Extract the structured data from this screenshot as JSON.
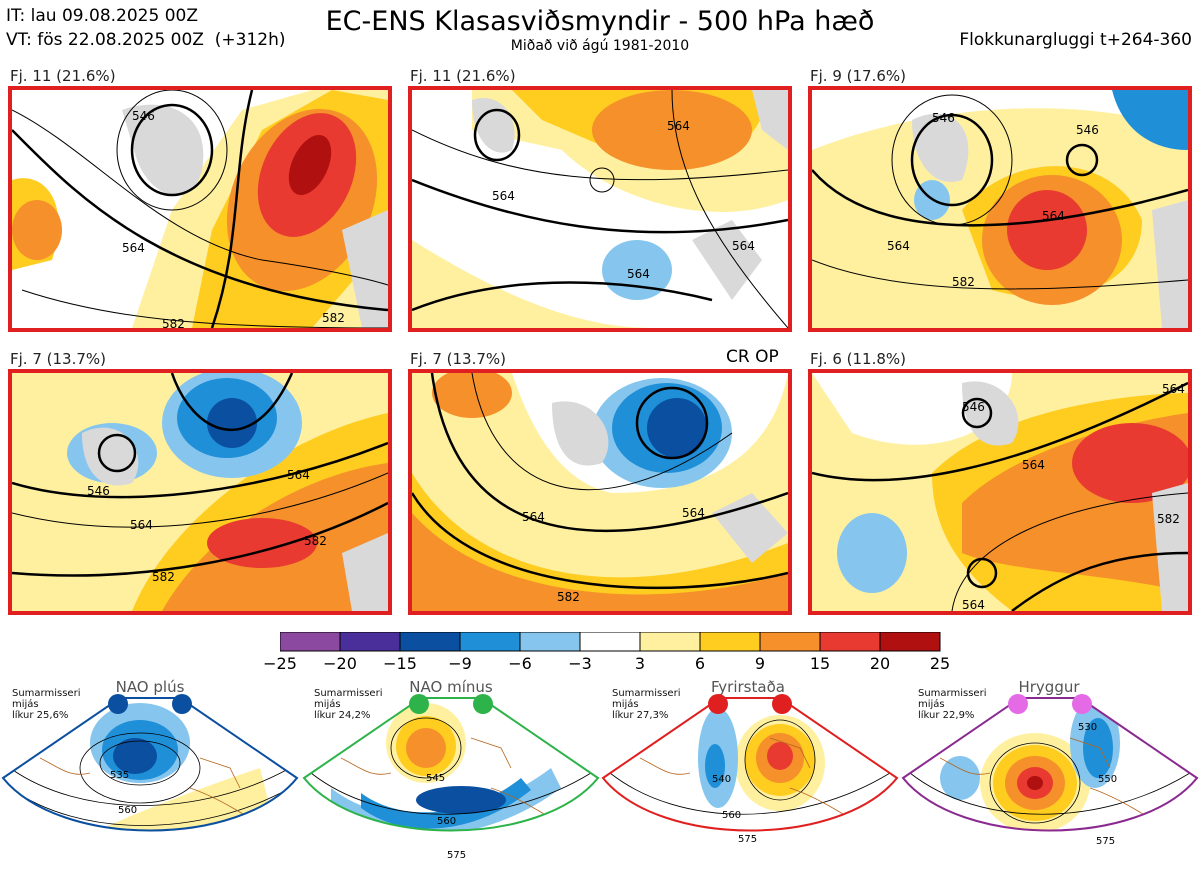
{
  "header": {
    "init_time": "IT: lau 09.08.2025 00Z",
    "valid_time": "VT: fös 22.08.2025 00Z  (+312h)",
    "title": "EC-ENS Klasasviðsmyndir - 500 hPa hæð",
    "subtitle": "Miðað við ágú 1981-2010",
    "window": "Flokkunargluggi t+264-360"
  },
  "chart_data": {
    "type": "heatmap",
    "title": "EC-ENS Klasasviðsmyndir - 500 hPa hæð",
    "panels": [
      {
        "label": "Fj. 11 (21.6%)",
        "contours": [
          "546",
          "564",
          "582",
          "582"
        ]
      },
      {
        "label": "Fj. 11 (21.6%)",
        "contours": [
          "564",
          "564",
          "564",
          "564"
        ]
      },
      {
        "label": "Fj. 9 (17.6%)",
        "contours": [
          "546",
          "546",
          "564",
          "564",
          "582"
        ]
      },
      {
        "label": "Fj. 7 (13.7%)",
        "contours": [
          "546",
          "564",
          "564",
          "582",
          "582"
        ]
      },
      {
        "label": "Fj. 7 (13.7%)",
        "annotation": "CR OP",
        "contours": [
          "564",
          "564",
          "582"
        ]
      },
      {
        "label": "Fj. 6 (11.8%)",
        "contours": [
          "546",
          "564",
          "564",
          "564",
          "582"
        ]
      }
    ],
    "colorbar": {
      "ticks": [
        "−25",
        "−20",
        "−15",
        "−9",
        "−6",
        "−3",
        "3",
        "6",
        "9",
        "15",
        "20",
        "25"
      ],
      "colors": [
        "#8b4aa0",
        "#4a2f9a",
        "#0a4fa0",
        "#1f8fd8",
        "#86c6ee",
        "#ffffff",
        "#fff0a0",
        "#ffcc20",
        "#f5902a",
        "#e83a30",
        "#b01010"
      ]
    },
    "regimes": [
      {
        "name": "NAO plús",
        "info": [
          "Sumarmisseri",
          "mijás",
          "líkur 25,6%"
        ],
        "color": "#0a4fa0",
        "contours": [
          "535",
          "560"
        ]
      },
      {
        "name": "NAO mínus",
        "info": [
          "Sumarmisseri",
          "mijás",
          "líkur 24,2%"
        ],
        "color": "#2db34a",
        "contours": [
          "545",
          "560",
          "575"
        ]
      },
      {
        "name": "Fyrirstaða",
        "info": [
          "Sumarmisseri",
          "mijás",
          "líkur 27,3%"
        ],
        "color": "#e02020",
        "contours": [
          "540",
          "560",
          "575"
        ]
      },
      {
        "name": "Hryggur",
        "info": [
          "Sumarmisseri",
          "mijás",
          "líkur 22,9%"
        ],
        "color": "#8a2a90",
        "contours": [
          "530",
          "550",
          "575"
        ]
      }
    ]
  }
}
